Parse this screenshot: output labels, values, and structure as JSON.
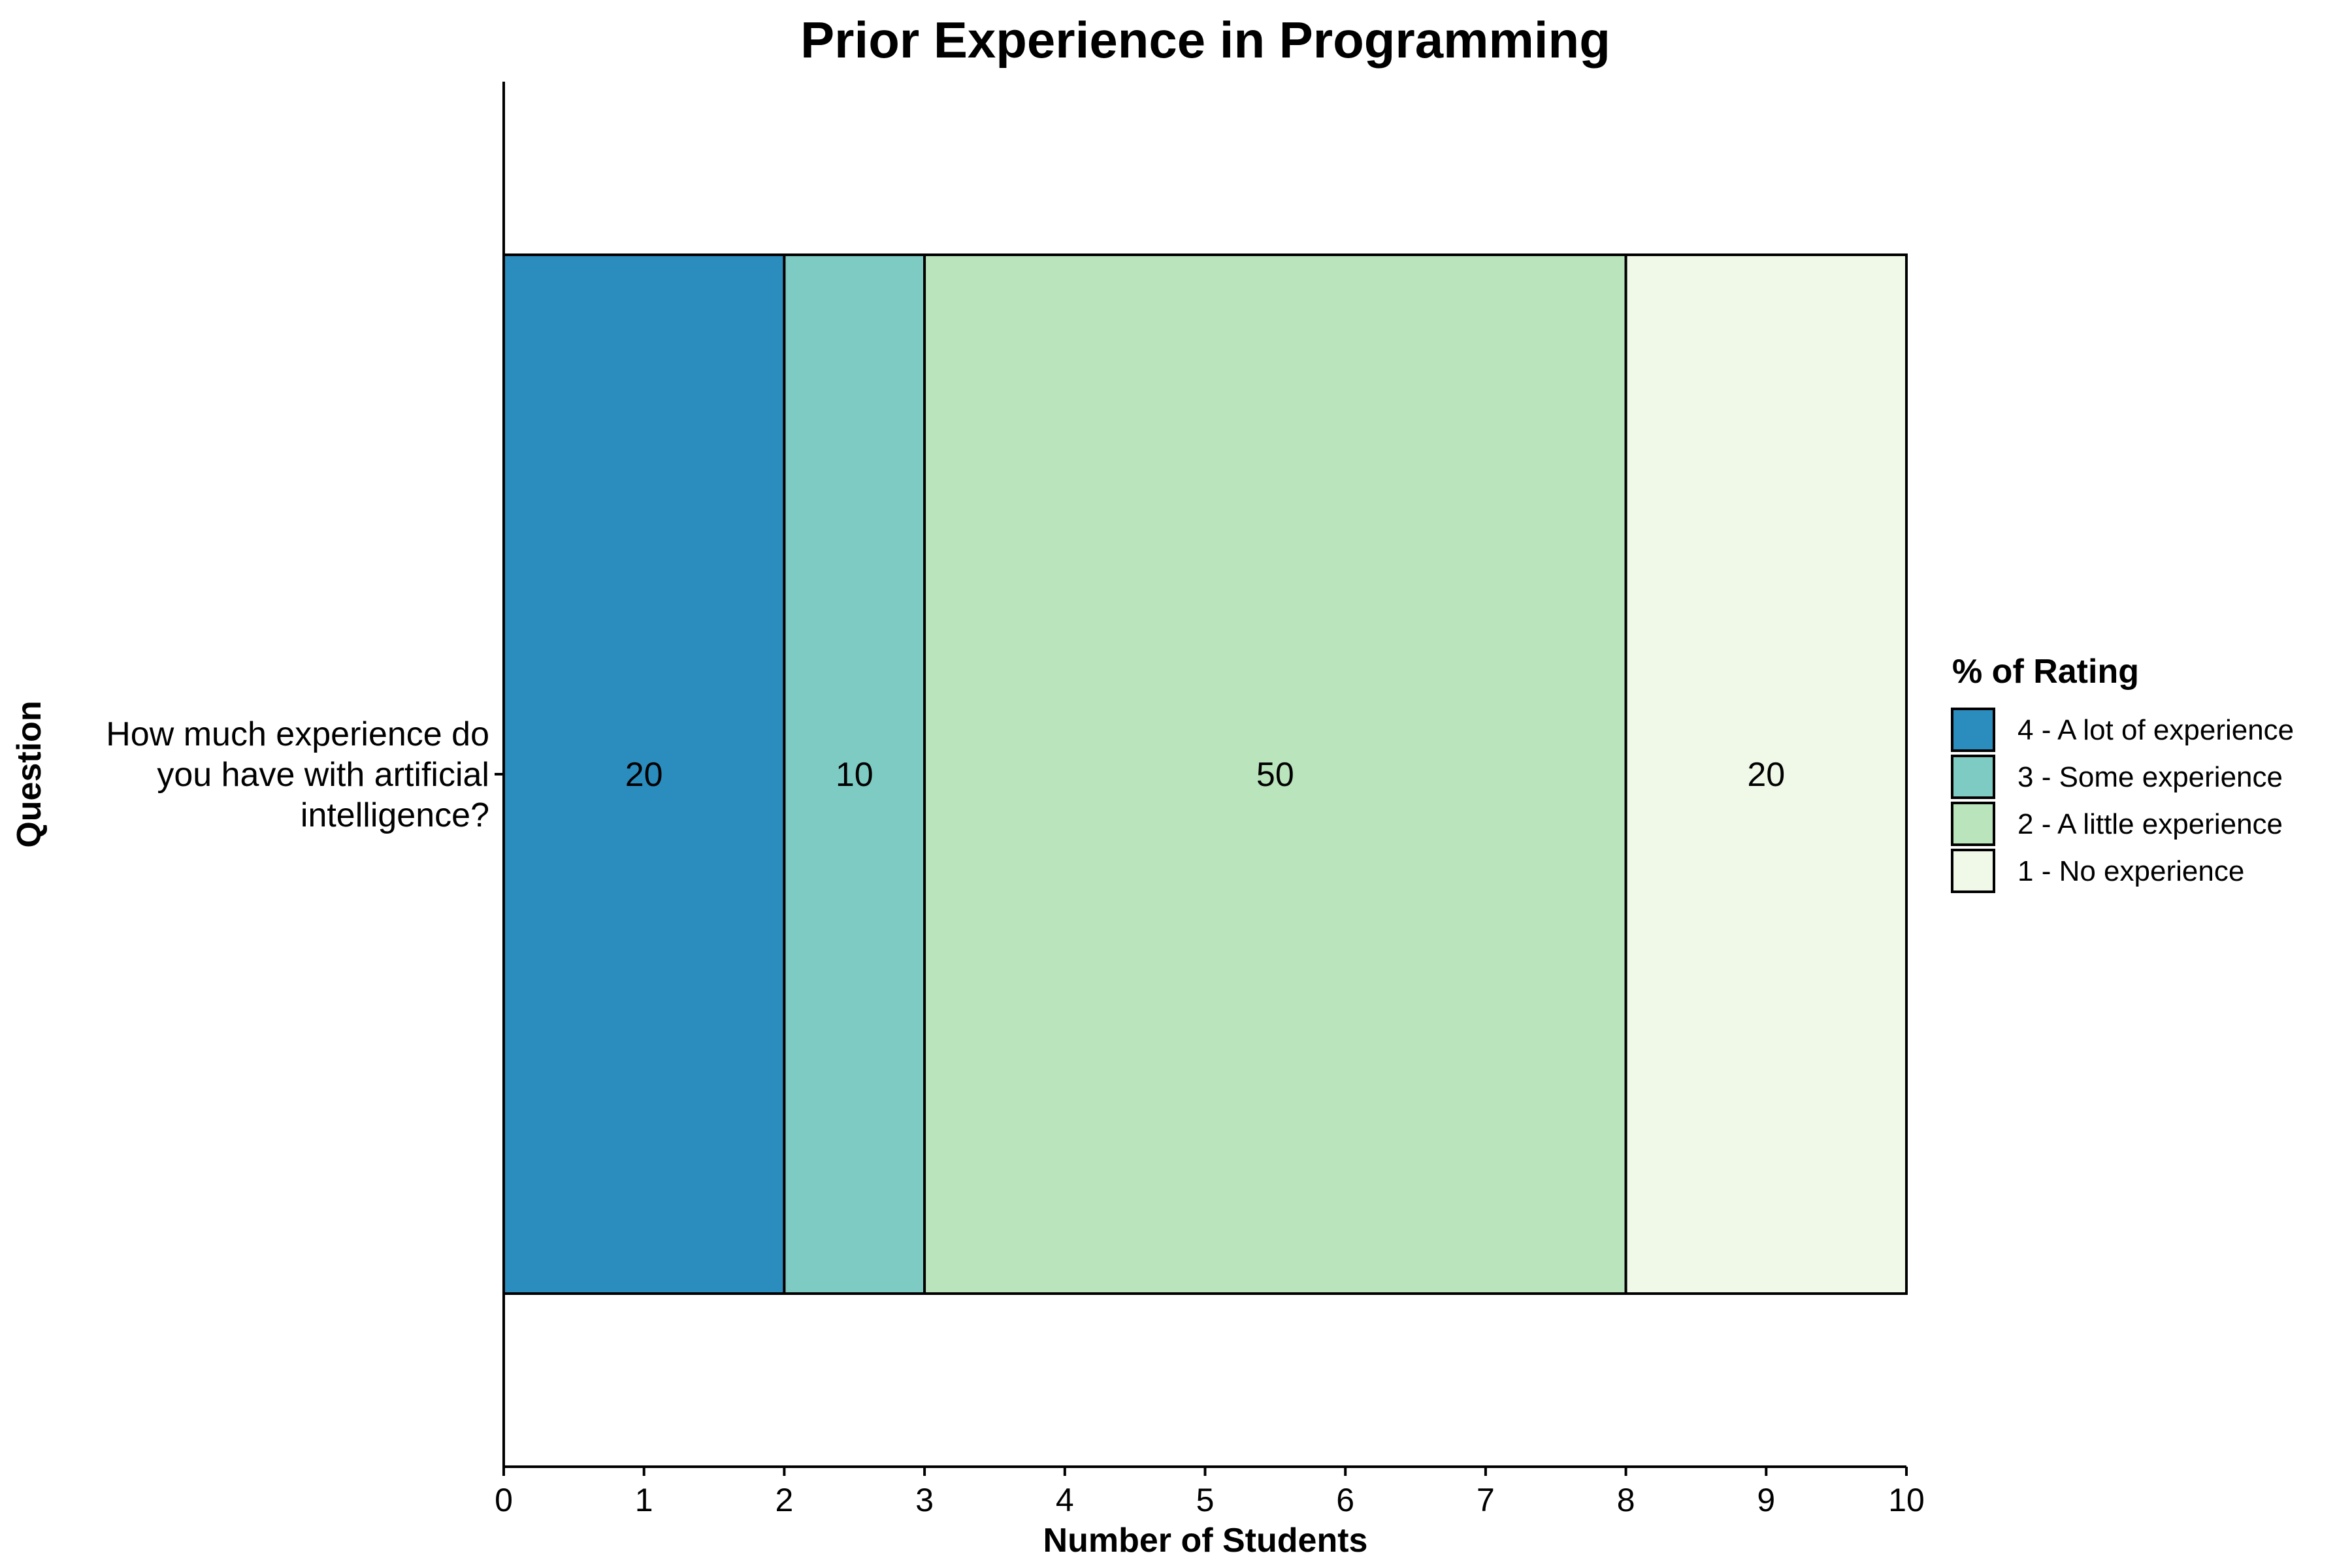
{
  "chart_data": {
    "type": "bar",
    "orientation": "horizontal",
    "stacked": true,
    "title": "Prior Experience in Programming",
    "xlabel": "Number of Students",
    "ylabel": "Question",
    "xlim": [
      0,
      10
    ],
    "x_ticks": [
      "0",
      "1",
      "2",
      "3",
      "4",
      "5",
      "6",
      "7",
      "8",
      "9",
      "10"
    ],
    "categories": [
      "How much experience do you have with artificial intelligence?"
    ],
    "category_lines": [
      "How much experience do",
      "you have with artificial",
      "intelligence?"
    ],
    "series": [
      {
        "name": "4 - A lot of experience",
        "values": [
          2
        ],
        "label": "20",
        "color": "#2b8cbe"
      },
      {
        "name": "3 - Some experience",
        "values": [
          1
        ],
        "label": "10",
        "color": "#7ecbc4"
      },
      {
        "name": "2 - A little experience",
        "values": [
          5
        ],
        "label": "50",
        "color": "#bae4bc"
      },
      {
        "name": "1 - No experience",
        "values": [
          2
        ],
        "label": "20",
        "color": "#f0f9e8"
      }
    ],
    "legend": {
      "title": "% of Rating",
      "position": "right"
    },
    "grid": false
  }
}
